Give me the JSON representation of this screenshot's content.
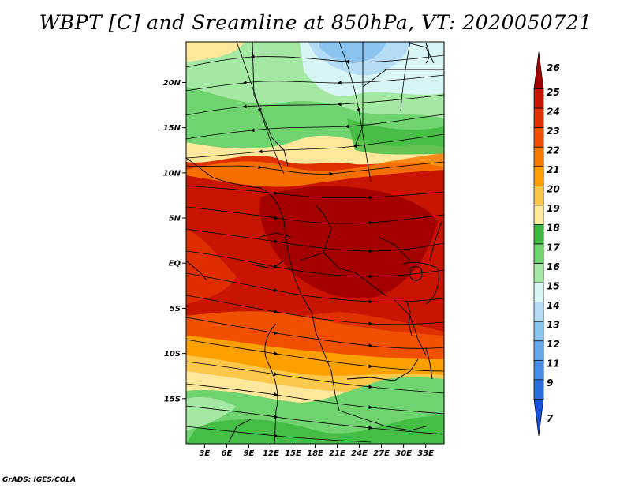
{
  "title": "WBPT [C] and Sreamline at 850hPa, VT: 2020050721",
  "credit": "GrADS: IGES/COLA",
  "map": {
    "lat_labels": [
      {
        "text": "20N",
        "lat": 20
      },
      {
        "text": "15N",
        "lat": 15
      },
      {
        "text": "10N",
        "lat": 10
      },
      {
        "text": "5N",
        "lat": 5
      },
      {
        "text": "EQ",
        "lat": 0
      },
      {
        "text": "5S",
        "lat": -5
      },
      {
        "text": "10S",
        "lat": -10
      },
      {
        "text": "15S",
        "lat": -15
      }
    ],
    "lon_labels": [
      {
        "text": "3E",
        "lon": 3
      },
      {
        "text": "6E",
        "lon": 6
      },
      {
        "text": "9E",
        "lon": 9
      },
      {
        "text": "12E",
        "lon": 12
      },
      {
        "text": "15E",
        "lon": 15
      },
      {
        "text": "18E",
        "lon": 18
      },
      {
        "text": "21E",
        "lon": 21
      },
      {
        "text": "24E",
        "lon": 24
      },
      {
        "text": "27E",
        "lon": 27
      },
      {
        "text": "30E",
        "lon": 30
      },
      {
        "text": "33E",
        "lon": 33
      }
    ],
    "lon_range": [
      0.5,
      35.5
    ],
    "lat_range": [
      -20,
      24.5
    ]
  },
  "colorbar": {
    "labels": [
      "26",
      "25",
      "24",
      "23",
      "22",
      "21",
      "20",
      "19",
      "18",
      "17",
      "16",
      "15",
      "14",
      "13",
      "12",
      "11",
      "9",
      "7"
    ],
    "colors": [
      "#a50000",
      "#c81400",
      "#e13000",
      "#f05000",
      "#f77a00",
      "#fca000",
      "#fdc84a",
      "#fde79a",
      "#3dba3d",
      "#6fd36f",
      "#a4e8a4",
      "#d8f5f5",
      "#b4dcf5",
      "#8cc4f0",
      "#64aaeb",
      "#468ce6",
      "#2a6ee0",
      "#1450d8"
    ]
  },
  "field_colors": {
    "dark": "#a50000",
    "red": "#c81400",
    "orange_red": "#e13000",
    "orange": "#f05000",
    "light_orange": "#f77a00",
    "amber": "#fca000",
    "tan": "#fdc84a",
    "pale": "#fde79a",
    "green_dark": "#3dba3d",
    "green": "#6fd36f",
    "green_light": "#a4e8a4",
    "cyan": "#d8f5f5",
    "blue_light": "#b4dcf5",
    "blue": "#8cc4f0"
  }
}
